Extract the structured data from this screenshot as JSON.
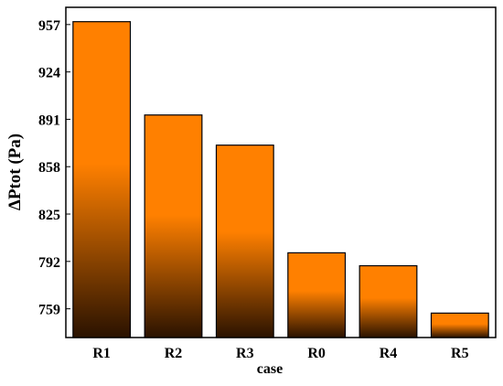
{
  "chart_data": {
    "type": "bar",
    "x_label": "case",
    "y_label": "ΔPtot (Pa)",
    "categories": [
      "R1",
      "R2",
      "R3",
      "R0",
      "R4",
      "R5"
    ],
    "values": [
      959,
      894,
      873,
      798,
      789,
      756
    ],
    "color": "#ff8000",
    "ylim": [
      739,
      969
    ],
    "yticks": [
      759,
      792,
      825,
      858,
      891,
      924,
      957
    ],
    "grid": false
  }
}
